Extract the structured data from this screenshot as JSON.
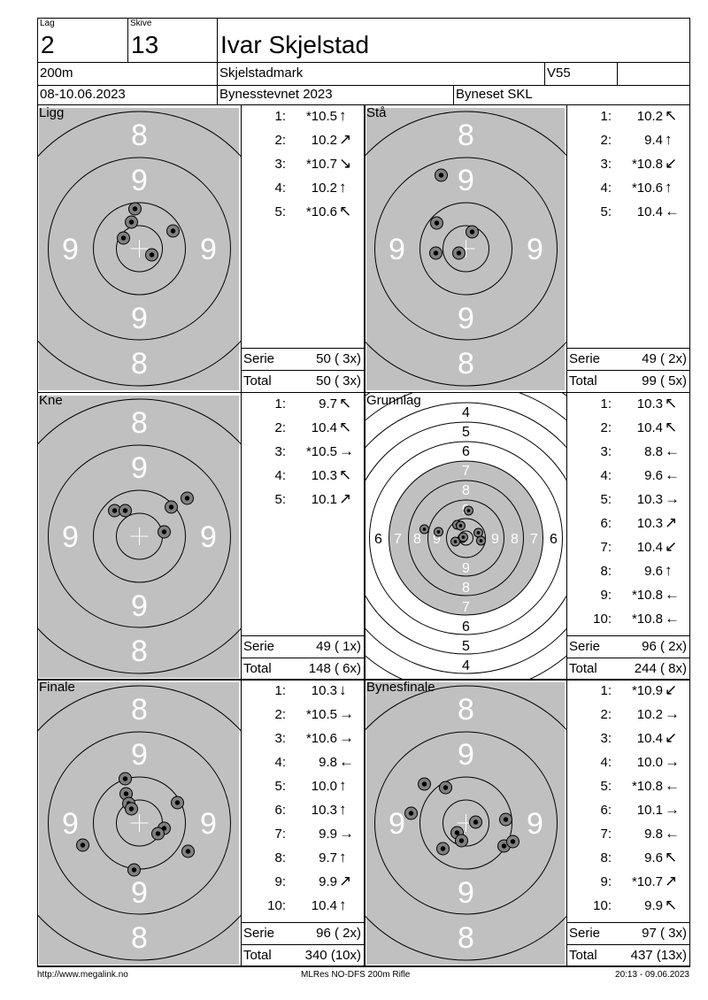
{
  "header": {
    "lag_label": "Lag",
    "lag": "2",
    "skive_label": "Skive",
    "skive": "13",
    "shooter": "Ivar Skjelstad",
    "distance": "200m",
    "club": "Skjelstadmark",
    "class": "V55",
    "class_extra": "",
    "dates": "08-10.06.2023",
    "event": "Bynesstevnet 2023",
    "organizer": "Byneset SKL"
  },
  "labels": {
    "serie": "Serie",
    "total": "Total"
  },
  "panels": [
    {
      "label": "Ligg",
      "target": "standard",
      "shots": [
        {
          "n": "1:",
          "value": "*10.5",
          "arrow": "n"
        },
        {
          "n": "2:",
          "value": "10.2",
          "arrow": "ne"
        },
        {
          "n": "3:",
          "value": "*10.7",
          "arrow": "se"
        },
        {
          "n": "4:",
          "value": "10.2",
          "arrow": "n"
        },
        {
          "n": "5:",
          "value": "*10.6",
          "arrow": "nw"
        }
      ],
      "serie": "50 ( 3x)",
      "total": "50 ( 3x)"
    },
    {
      "label": "Stå",
      "target": "standard",
      "shots": [
        {
          "n": "1:",
          "value": "10.2",
          "arrow": "nw"
        },
        {
          "n": "2:",
          "value": "9.4",
          "arrow": "n"
        },
        {
          "n": "3:",
          "value": "*10.8",
          "arrow": "sw"
        },
        {
          "n": "4:",
          "value": "*10.6",
          "arrow": "n"
        },
        {
          "n": "5:",
          "value": "10.4",
          "arrow": "w"
        }
      ],
      "serie": "49 ( 2x)",
      "total": "99 ( 5x)"
    },
    {
      "label": "Kne",
      "target": "standard",
      "shots": [
        {
          "n": "1:",
          "value": "9.7",
          "arrow": "nw"
        },
        {
          "n": "2:",
          "value": "10.4",
          "arrow": "nw"
        },
        {
          "n": "3:",
          "value": "*10.5",
          "arrow": "e"
        },
        {
          "n": "4:",
          "value": "10.3",
          "arrow": "nw"
        },
        {
          "n": "5:",
          "value": "10.1",
          "arrow": "ne"
        }
      ],
      "serie": "49 ( 1x)",
      "total": "148 ( 6x)"
    },
    {
      "label": "Grunnlag",
      "target": "grunnlag",
      "shots": [
        {
          "n": "1:",
          "value": "10.3",
          "arrow": "nw"
        },
        {
          "n": "2:",
          "value": "10.4",
          "arrow": "nw"
        },
        {
          "n": "3:",
          "value": "8.8",
          "arrow": "w"
        },
        {
          "n": "4:",
          "value": "9.6",
          "arrow": "w"
        },
        {
          "n": "5:",
          "value": "10.3",
          "arrow": "e"
        },
        {
          "n": "6:",
          "value": "10.3",
          "arrow": "ne"
        },
        {
          "n": "7:",
          "value": "10.4",
          "arrow": "sw"
        },
        {
          "n": "8:",
          "value": "9.6",
          "arrow": "n"
        },
        {
          "n": "9:",
          "value": "*10.8",
          "arrow": "w"
        },
        {
          "n": "10:",
          "value": "*10.8",
          "arrow": "w"
        }
      ],
      "serie": "96 ( 2x)",
      "total": "244 ( 8x)"
    },
    {
      "label": "Finale",
      "target": "standard",
      "shots": [
        {
          "n": "1:",
          "value": "10.3",
          "arrow": "s"
        },
        {
          "n": "2:",
          "value": "*10.5",
          "arrow": "e"
        },
        {
          "n": "3:",
          "value": "*10.6",
          "arrow": "e"
        },
        {
          "n": "4:",
          "value": "9.8",
          "arrow": "w"
        },
        {
          "n": "5:",
          "value": "10.0",
          "arrow": "n"
        },
        {
          "n": "6:",
          "value": "10.3",
          "arrow": "n"
        },
        {
          "n": "7:",
          "value": "9.9",
          "arrow": "e"
        },
        {
          "n": "8:",
          "value": "9.7",
          "arrow": "n"
        },
        {
          "n": "9:",
          "value": "9.9",
          "arrow": "ne"
        },
        {
          "n": "10:",
          "value": "10.4",
          "arrow": "n"
        }
      ],
      "serie": "96 ( 2x)",
      "total": "340 (10x)"
    },
    {
      "label": "Bynesfinale",
      "target": "standard",
      "shots": [
        {
          "n": "1:",
          "value": "*10.9",
          "arrow": "sw"
        },
        {
          "n": "2:",
          "value": "10.2",
          "arrow": "e"
        },
        {
          "n": "3:",
          "value": "10.4",
          "arrow": "sw"
        },
        {
          "n": "4:",
          "value": "10.0",
          "arrow": "e"
        },
        {
          "n": "5:",
          "value": "*10.8",
          "arrow": "w"
        },
        {
          "n": "6:",
          "value": "10.1",
          "arrow": "e"
        },
        {
          "n": "7:",
          "value": "9.8",
          "arrow": "w"
        },
        {
          "n": "8:",
          "value": "9.6",
          "arrow": "nw"
        },
        {
          "n": "9:",
          "value": "*10.7",
          "arrow": "ne"
        },
        {
          "n": "10:",
          "value": "9.9",
          "arrow": "nw"
        }
      ],
      "serie": "97 ( 3x)",
      "total": "437 (13x)"
    }
  ],
  "target_labels": {
    "standard": {
      "inner": "9",
      "outer": "8"
    },
    "grunnlag": [
      "9",
      "8",
      "7",
      "6",
      "5",
      "4"
    ]
  },
  "colors": {
    "target_grey": "#c0c0c0",
    "ring_label": "#ffffff",
    "shot": "#808080"
  },
  "footer": {
    "left": "http://www.megalink.no",
    "center": "MLRes NO-DFS 200m Rifle",
    "right": "20:13 - 09.06.2023"
  }
}
